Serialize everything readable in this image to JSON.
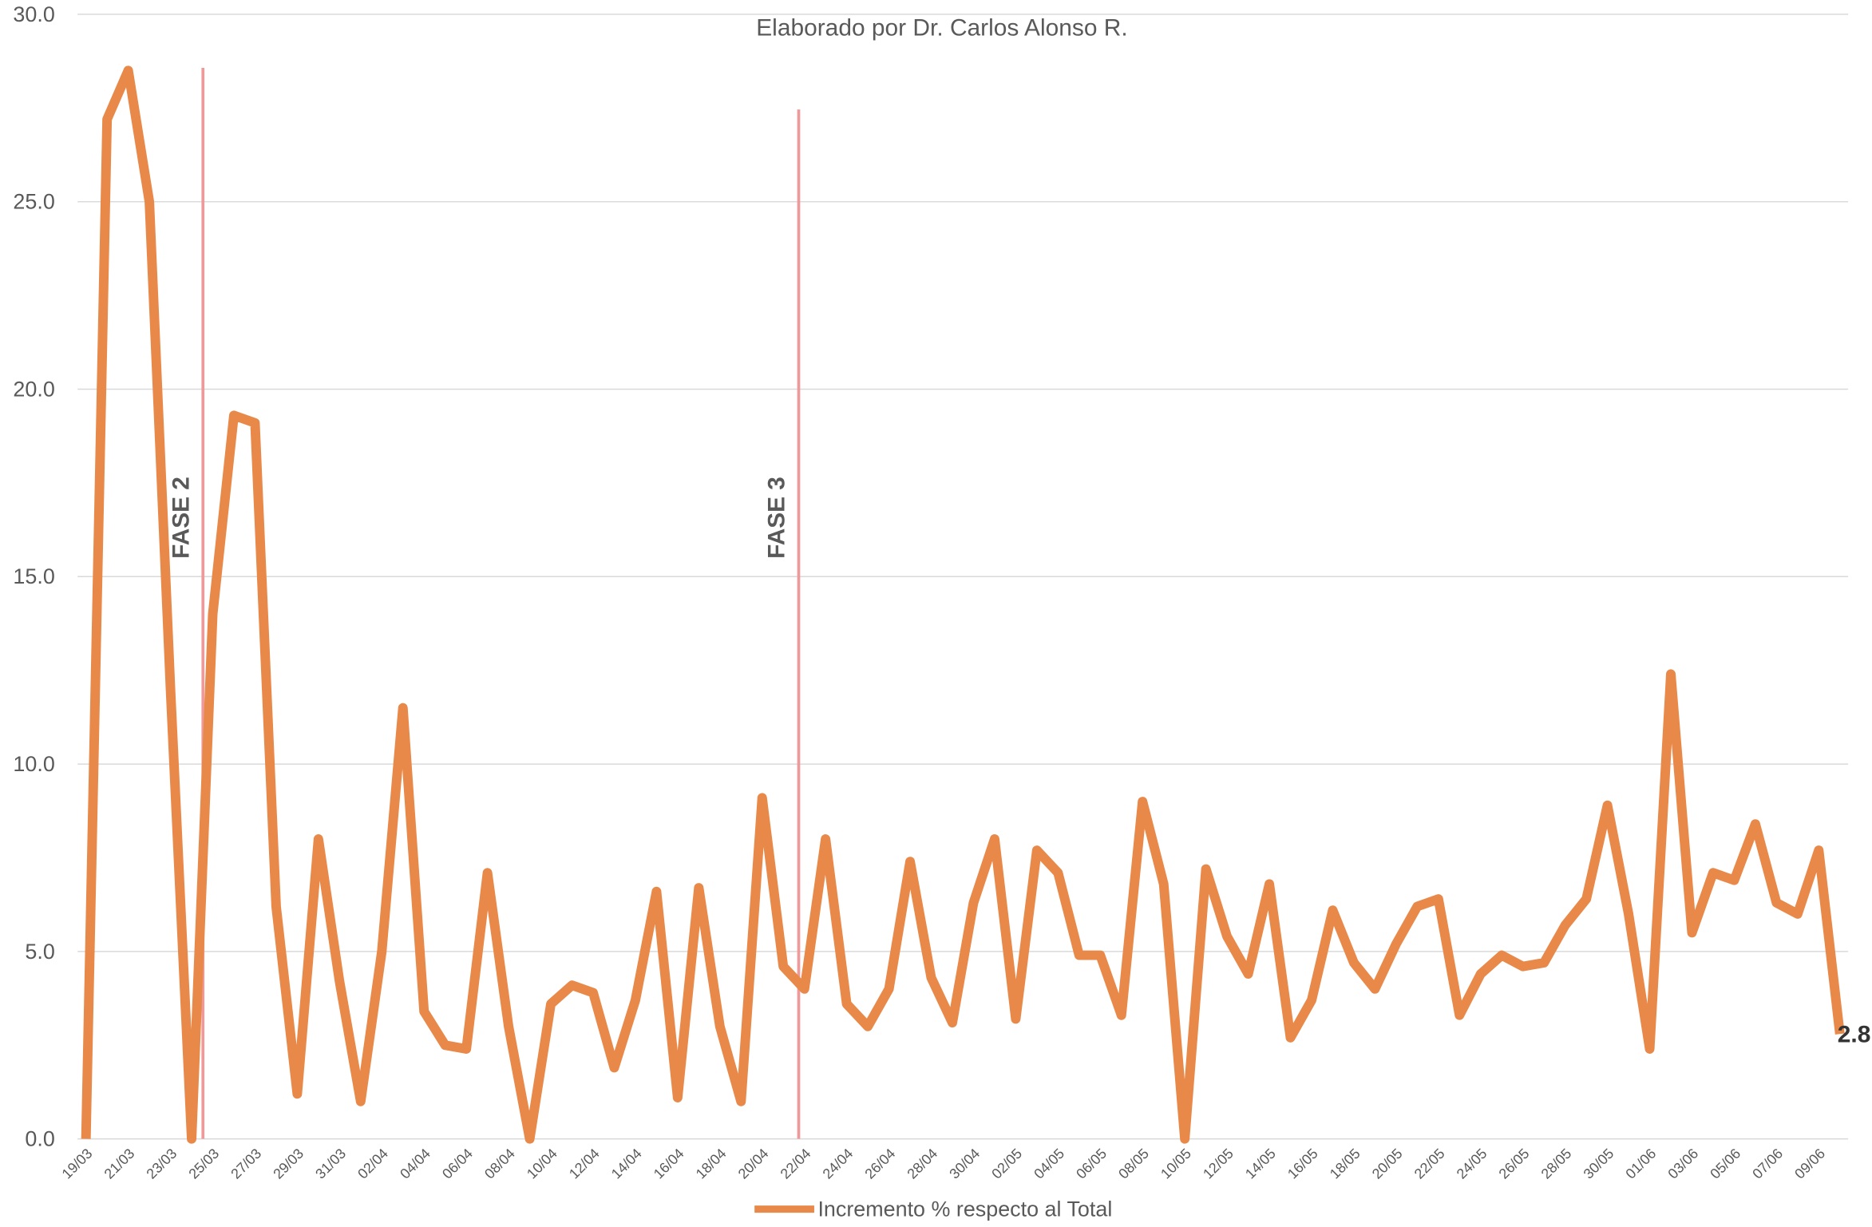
{
  "chart_data": {
    "type": "line",
    "subtitle": "Elaborado por Dr. Carlos Alonso R.",
    "categories": [
      "19/03",
      null,
      "21/03",
      null,
      "23/03",
      null,
      "25/03",
      null,
      "27/03",
      null,
      "29/03",
      null,
      "31/03",
      null,
      "02/04",
      null,
      "04/04",
      null,
      "06/04",
      null,
      "08/04",
      null,
      "10/04",
      null,
      "12/04",
      null,
      "14/04",
      null,
      "16/04",
      null,
      "18/04",
      null,
      "20/04",
      null,
      "22/04",
      null,
      "24/04",
      null,
      "26/04",
      null,
      "28/04",
      null,
      "30/04",
      null,
      "02/05",
      null,
      "04/05",
      null,
      "06/05",
      null,
      "08/05",
      null,
      "10/05",
      null,
      "12/05",
      null,
      "14/05",
      null,
      "16/05",
      null,
      "18/05",
      null,
      "20/05",
      null,
      "22/05",
      null,
      "24/05",
      null,
      "26/05",
      null,
      "28/05",
      null,
      "30/05",
      null,
      "01/06",
      null,
      "03/06",
      null,
      "05/06",
      null,
      "07/06",
      null,
      "09/06",
      null
    ],
    "series": [
      {
        "name": "Incremento % respecto al Total",
        "color": "#e8894a",
        "values": [
          0,
          27.2,
          28.5,
          25,
          12,
          0,
          14,
          19.3,
          19.1,
          6.2,
          1.2,
          8,
          4.2,
          1,
          5,
          11.5,
          3.4,
          2.5,
          2.4,
          7.1,
          3,
          0,
          3.6,
          4.1,
          3.9,
          1.9,
          3.7,
          6.6,
          1.1,
          6.7,
          3,
          1,
          9.1,
          4.6,
          4,
          8,
          3.6,
          3,
          4,
          7.4,
          4.3,
          3.1,
          6.3,
          8,
          3.2,
          7.7,
          7.1,
          4.9,
          4.9,
          3.3,
          9,
          6.8,
          0,
          7.2,
          5.4,
          4.4,
          6.8,
          2.7,
          3.7,
          6.1,
          4.7,
          4,
          5.2,
          6.2,
          6.4,
          3.3,
          4.4,
          4.9,
          4.6,
          4.7,
          5.7,
          6.4,
          8.9,
          6,
          2.4,
          12.4,
          5.5,
          7.1,
          6.9,
          8.4,
          6.3,
          6,
          7.7,
          2.8
        ]
      }
    ],
    "ylim": [
      0,
      30
    ],
    "yticks": [
      {
        "value": 0,
        "label": "0.0"
      },
      {
        "value": 5,
        "label": "5.0"
      },
      {
        "value": 10,
        "label": "10.0"
      },
      {
        "value": 15,
        "label": "15.0"
      },
      {
        "value": 20,
        "label": "20.0"
      },
      {
        "value": 25,
        "label": "25.0"
      },
      {
        "value": 30,
        "label": "30.0"
      }
    ],
    "grid": true,
    "annotations": [
      {
        "label": "FASE 2"
      },
      {
        "label": "FASE 3"
      }
    ],
    "legend": "bottom"
  }
}
